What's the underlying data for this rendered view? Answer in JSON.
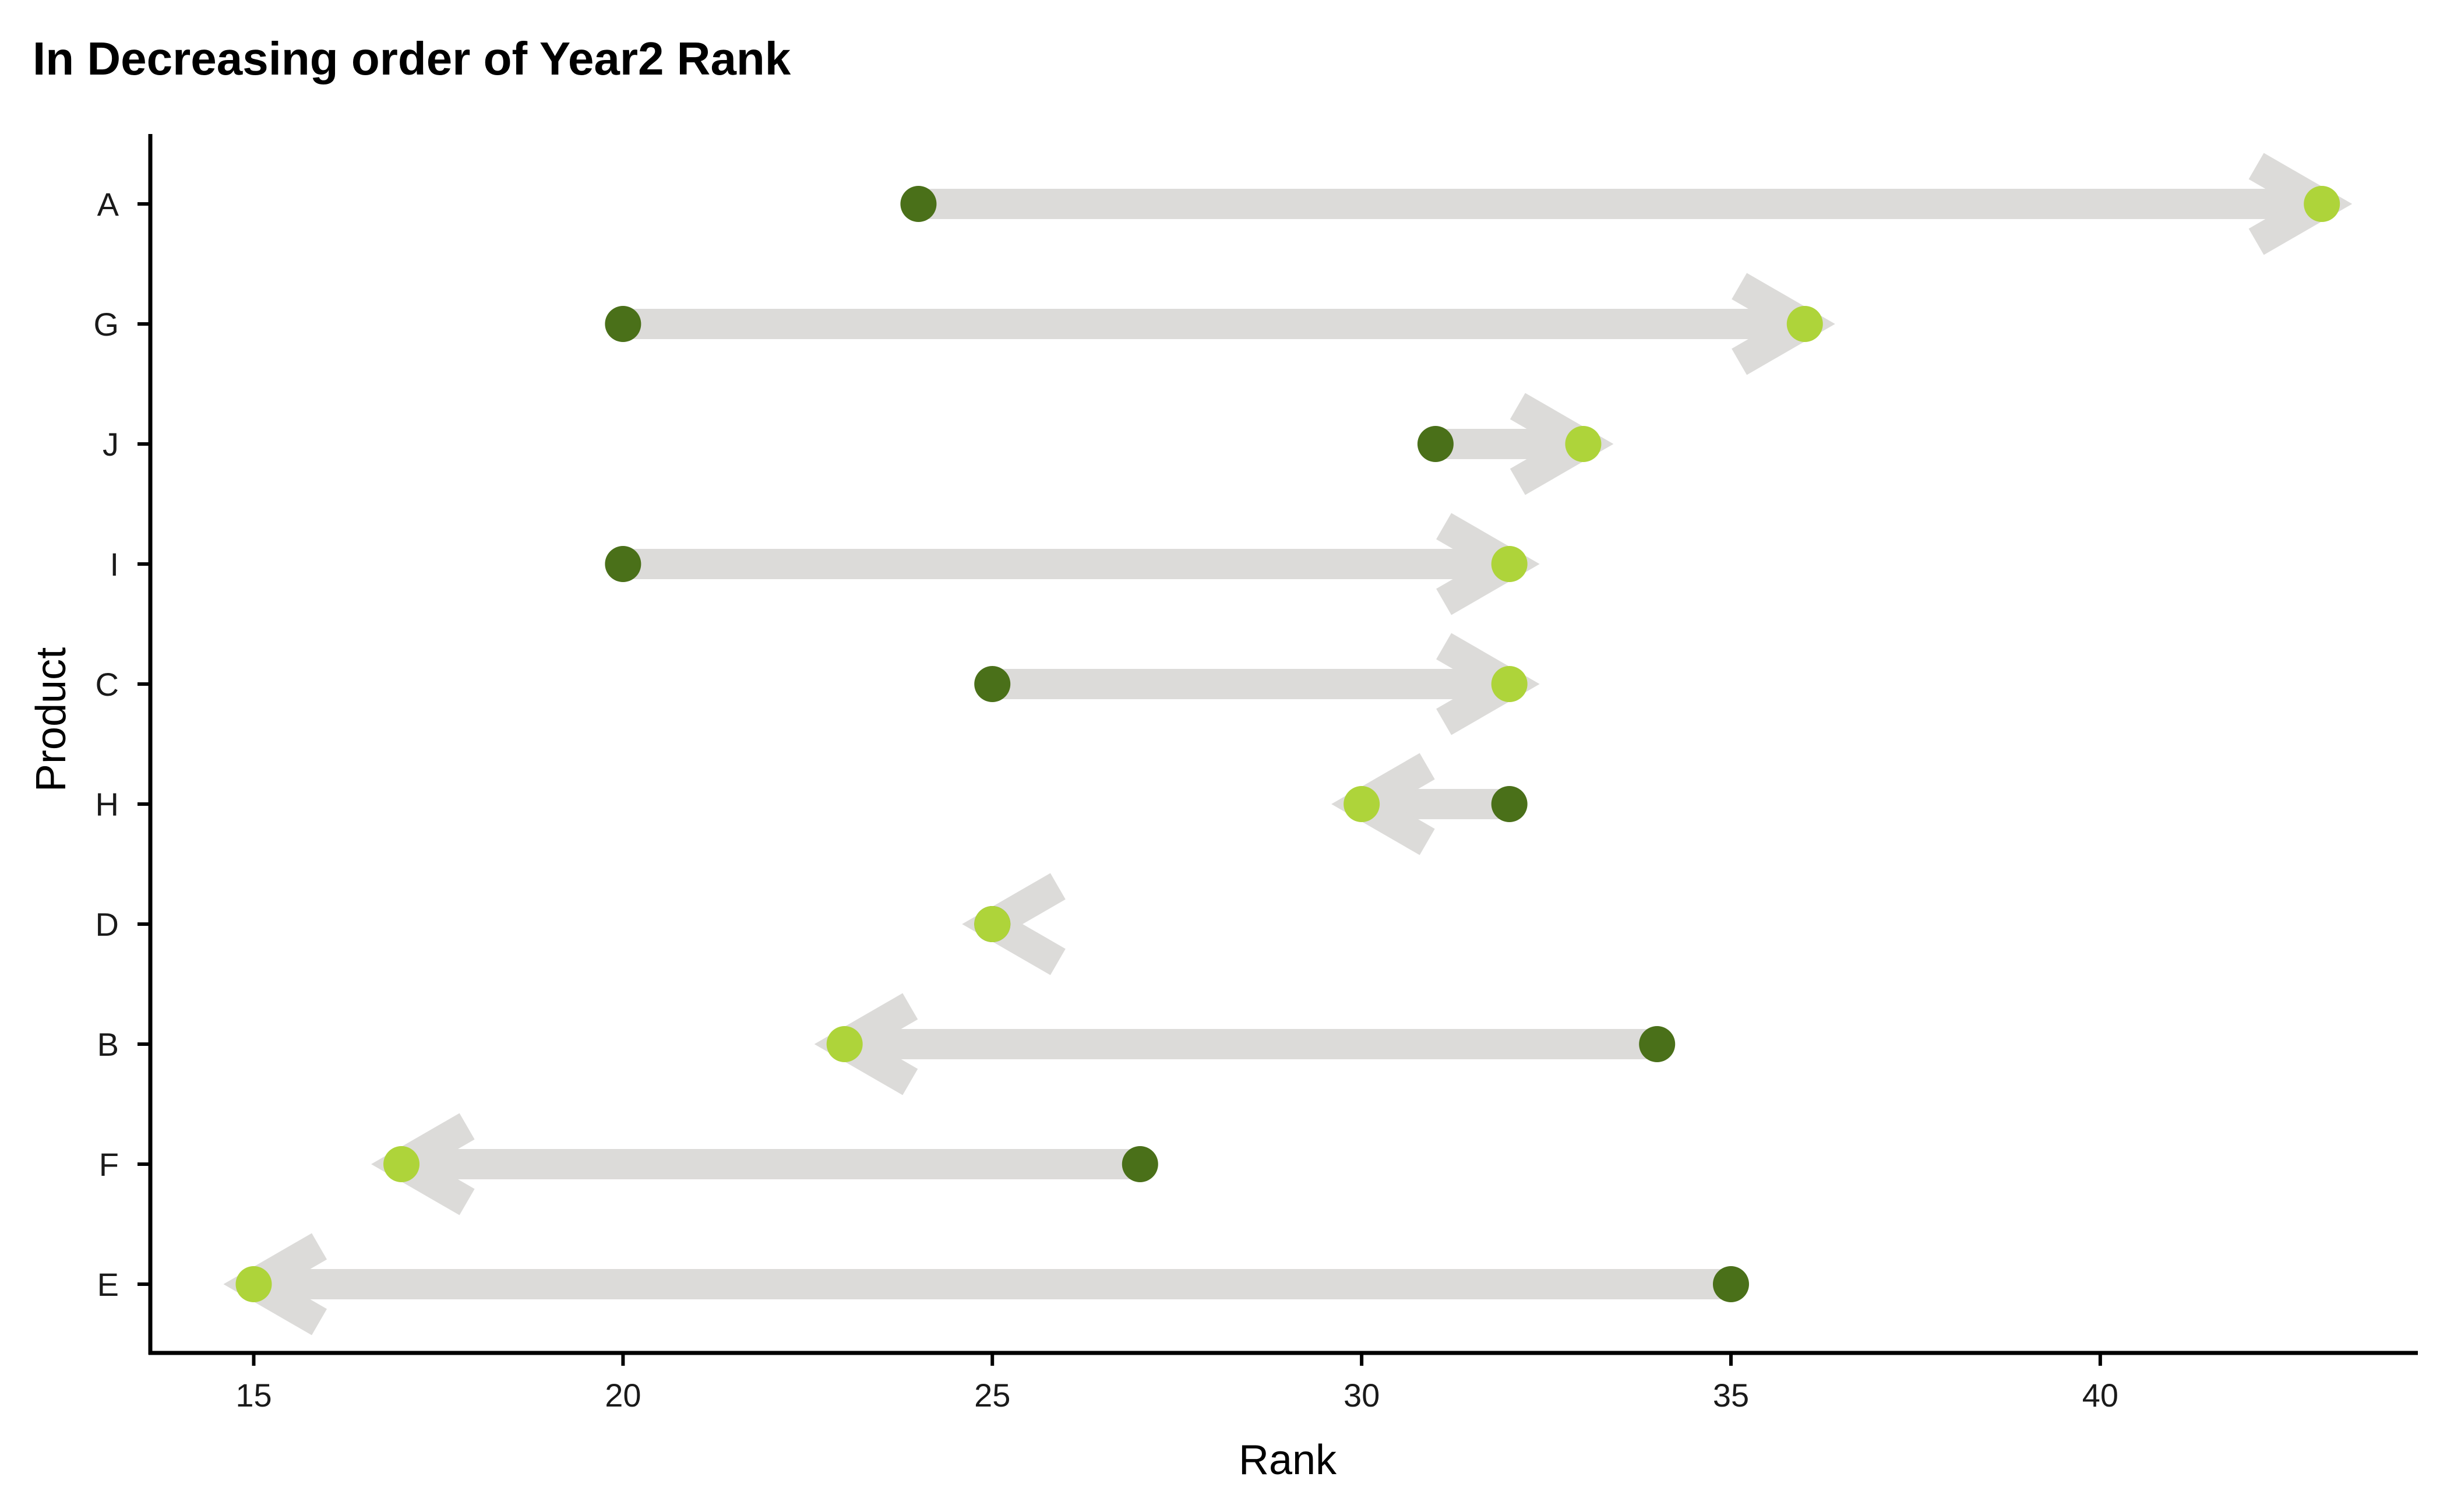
{
  "chart_data": {
    "type": "arrow-dumbbell",
    "title": "In Decreasing order of Year2 Rank",
    "xlabel": "Rank",
    "ylabel": "Product",
    "xlim": [
      13.6,
      44.3
    ],
    "xticks": [
      15,
      20,
      25,
      30,
      35,
      40
    ],
    "grid": false,
    "legend": "none",
    "categories": [
      "A",
      "G",
      "J",
      "I",
      "C",
      "H",
      "D",
      "B",
      "F",
      "E"
    ],
    "series": [
      {
        "values": [
          24,
          20,
          31,
          20,
          25,
          32,
          25,
          34,
          27,
          35
        ]
      },
      {
        "values": [
          43,
          36,
          33,
          32,
          32,
          30,
          25,
          23,
          17,
          15
        ]
      }
    ],
    "colors": {
      "start_point": "#4a7019",
      "end_point": "#aed43a",
      "arrow": "#dcdbd9",
      "axis": "#000000"
    }
  }
}
